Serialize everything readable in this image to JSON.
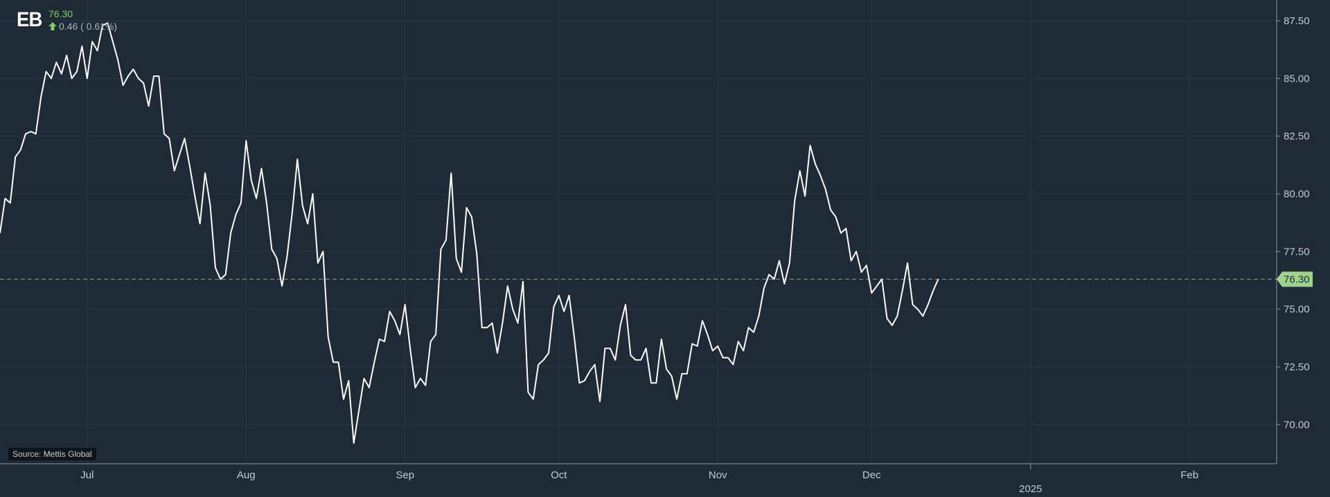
{
  "header": {
    "ticker": "EB",
    "price": "76.30",
    "change": "0.46 ( 0.61%)",
    "arrow_icon": "arrow-up-icon"
  },
  "source": "Source: Mettis Global",
  "last_value_label": "76.30",
  "colors": {
    "background": "#1e2a35",
    "line": "#ffffff",
    "grid": "#2b3844",
    "up": "#7dd35a",
    "last_badge": "#9ed489",
    "axis_text": "#c5ccd3"
  },
  "chart_data": {
    "type": "line",
    "title": "",
    "xlabel": "",
    "ylabel": "",
    "x_start": "2024-06-14",
    "x_end": "2025-02-18",
    "x_ticks": [
      {
        "label": "Jul",
        "date": "2024-07-01"
      },
      {
        "label": "Aug",
        "date": "2024-08-01"
      },
      {
        "label": "Sep",
        "date": "2024-09-01"
      },
      {
        "label": "Oct",
        "date": "2024-10-01"
      },
      {
        "label": "Nov",
        "date": "2024-11-01"
      },
      {
        "label": "Dec",
        "date": "2024-12-01"
      },
      {
        "label": "Feb",
        "date": "2025-02-01"
      }
    ],
    "x_year_marker": {
      "label": "2025",
      "date": "2025-01-01"
    },
    "ylim": [
      68.3,
      88.4
    ],
    "y_ticks": [
      70.0,
      72.5,
      75.0,
      77.5,
      80.0,
      82.5,
      85.0,
      87.5
    ],
    "y_tick_labels": [
      "70.00",
      "72.50",
      "75.00",
      "77.50",
      "80.00",
      "82.50",
      "85.00",
      "87.50"
    ],
    "last_value": 76.3,
    "grid": true,
    "legend": "none",
    "series": [
      {
        "values": [
          [
            "2024-06-14",
            78.3
          ],
          [
            "2024-06-15",
            79.8
          ],
          [
            "2024-06-16",
            79.6
          ],
          [
            "2024-06-17",
            81.6
          ],
          [
            "2024-06-18",
            81.9
          ],
          [
            "2024-06-19",
            82.6
          ],
          [
            "2024-06-20",
            82.7
          ],
          [
            "2024-06-21",
            82.6
          ],
          [
            "2024-06-22",
            84.2
          ],
          [
            "2024-06-23",
            85.3
          ],
          [
            "2024-06-24",
            85.0
          ],
          [
            "2024-06-25",
            85.7
          ],
          [
            "2024-06-26",
            85.2
          ],
          [
            "2024-06-27",
            86.0
          ],
          [
            "2024-06-28",
            85.0
          ],
          [
            "2024-06-29",
            85.3
          ],
          [
            "2024-06-30",
            86.4
          ],
          [
            "2024-07-01",
            85.0
          ],
          [
            "2024-07-02",
            86.6
          ],
          [
            "2024-07-03",
            86.2
          ],
          [
            "2024-07-04",
            87.3
          ],
          [
            "2024-07-05",
            87.4
          ],
          [
            "2024-07-06",
            86.6
          ],
          [
            "2024-07-07",
            85.8
          ],
          [
            "2024-07-08",
            84.7
          ],
          [
            "2024-07-09",
            85.1
          ],
          [
            "2024-07-10",
            85.4
          ],
          [
            "2024-07-11",
            85.0
          ],
          [
            "2024-07-12",
            84.8
          ],
          [
            "2024-07-13",
            83.8
          ],
          [
            "2024-07-14",
            85.1
          ],
          [
            "2024-07-15",
            85.1
          ],
          [
            "2024-07-16",
            82.6
          ],
          [
            "2024-07-17",
            82.4
          ],
          [
            "2024-07-18",
            81.0
          ],
          [
            "2024-07-19",
            81.7
          ],
          [
            "2024-07-20",
            82.4
          ],
          [
            "2024-07-21",
            81.2
          ],
          [
            "2024-07-22",
            79.9
          ],
          [
            "2024-07-23",
            78.7
          ],
          [
            "2024-07-24",
            80.9
          ],
          [
            "2024-07-25",
            79.5
          ],
          [
            "2024-07-26",
            76.8
          ],
          [
            "2024-07-27",
            76.3
          ],
          [
            "2024-07-28",
            76.5
          ],
          [
            "2024-07-29",
            78.3
          ],
          [
            "2024-07-30",
            79.1
          ],
          [
            "2024-07-31",
            79.6
          ],
          [
            "2024-08-01",
            82.3
          ],
          [
            "2024-08-02",
            80.6
          ],
          [
            "2024-08-03",
            79.8
          ],
          [
            "2024-08-04",
            81.1
          ],
          [
            "2024-08-05",
            79.6
          ],
          [
            "2024-08-06",
            77.6
          ],
          [
            "2024-08-07",
            77.2
          ],
          [
            "2024-08-08",
            76.0
          ],
          [
            "2024-08-09",
            77.3
          ],
          [
            "2024-08-10",
            79.2
          ],
          [
            "2024-08-11",
            81.5
          ],
          [
            "2024-08-12",
            79.5
          ],
          [
            "2024-08-13",
            78.7
          ],
          [
            "2024-08-14",
            80.0
          ],
          [
            "2024-08-15",
            77.0
          ],
          [
            "2024-08-16",
            77.5
          ],
          [
            "2024-08-17",
            73.8
          ],
          [
            "2024-08-18",
            72.7
          ],
          [
            "2024-08-19",
            72.7
          ],
          [
            "2024-08-20",
            71.1
          ],
          [
            "2024-08-21",
            71.9
          ],
          [
            "2024-08-22",
            69.2
          ],
          [
            "2024-08-23",
            70.6
          ],
          [
            "2024-08-24",
            72.0
          ],
          [
            "2024-08-25",
            71.6
          ],
          [
            "2024-08-26",
            72.7
          ],
          [
            "2024-08-27",
            73.7
          ],
          [
            "2024-08-28",
            73.6
          ],
          [
            "2024-08-29",
            74.9
          ],
          [
            "2024-08-30",
            74.5
          ],
          [
            "2024-08-31",
            73.9
          ],
          [
            "2024-09-01",
            75.2
          ],
          [
            "2024-09-02",
            73.3
          ],
          [
            "2024-09-03",
            71.6
          ],
          [
            "2024-09-04",
            72.0
          ],
          [
            "2024-09-05",
            71.7
          ],
          [
            "2024-09-06",
            73.6
          ],
          [
            "2024-09-07",
            73.9
          ],
          [
            "2024-09-08",
            77.6
          ],
          [
            "2024-09-09",
            78.0
          ],
          [
            "2024-09-10",
            80.9
          ],
          [
            "2024-09-11",
            77.2
          ],
          [
            "2024-09-12",
            76.6
          ],
          [
            "2024-09-13",
            79.4
          ],
          [
            "2024-09-14",
            79.0
          ],
          [
            "2024-09-15",
            77.4
          ],
          [
            "2024-09-16",
            74.2
          ],
          [
            "2024-09-17",
            74.2
          ],
          [
            "2024-09-18",
            74.4
          ],
          [
            "2024-09-19",
            73.1
          ],
          [
            "2024-09-20",
            74.4
          ],
          [
            "2024-09-21",
            76.0
          ],
          [
            "2024-09-22",
            75.0
          ],
          [
            "2024-09-23",
            74.4
          ],
          [
            "2024-09-24",
            76.2
          ],
          [
            "2024-09-25",
            71.4
          ],
          [
            "2024-09-26",
            71.1
          ],
          [
            "2024-09-27",
            72.6
          ],
          [
            "2024-09-28",
            72.8
          ],
          [
            "2024-09-29",
            73.1
          ],
          [
            "2024-09-30",
            75.1
          ],
          [
            "2024-10-01",
            75.6
          ],
          [
            "2024-10-02",
            74.9
          ],
          [
            "2024-10-03",
            75.6
          ],
          [
            "2024-10-04",
            73.8
          ],
          [
            "2024-10-05",
            71.8
          ],
          [
            "2024-10-06",
            71.9
          ],
          [
            "2024-10-07",
            72.3
          ],
          [
            "2024-10-08",
            72.6
          ],
          [
            "2024-10-09",
            71.0
          ],
          [
            "2024-10-10",
            73.3
          ],
          [
            "2024-10-11",
            73.3
          ],
          [
            "2024-10-12",
            72.8
          ],
          [
            "2024-10-13",
            74.3
          ],
          [
            "2024-10-14",
            75.2
          ],
          [
            "2024-10-15",
            73.0
          ],
          [
            "2024-10-16",
            72.8
          ],
          [
            "2024-10-17",
            72.8
          ],
          [
            "2024-10-18",
            73.3
          ],
          [
            "2024-10-19",
            71.8
          ],
          [
            "2024-10-20",
            71.8
          ],
          [
            "2024-10-21",
            73.7
          ],
          [
            "2024-10-22",
            72.4
          ],
          [
            "2024-10-23",
            72.1
          ],
          [
            "2024-10-24",
            71.1
          ],
          [
            "2024-10-25",
            72.2
          ],
          [
            "2024-10-26",
            72.2
          ],
          [
            "2024-10-27",
            73.5
          ],
          [
            "2024-10-28",
            73.4
          ],
          [
            "2024-10-29",
            74.5
          ],
          [
            "2024-10-30",
            73.9
          ],
          [
            "2024-10-31",
            73.2
          ],
          [
            "2024-11-01",
            73.4
          ],
          [
            "2024-11-02",
            72.9
          ],
          [
            "2024-11-03",
            72.9
          ],
          [
            "2024-11-04",
            72.6
          ],
          [
            "2024-11-05",
            73.6
          ],
          [
            "2024-11-06",
            73.2
          ],
          [
            "2024-11-07",
            74.2
          ],
          [
            "2024-11-08",
            74.0
          ],
          [
            "2024-11-09",
            74.7
          ],
          [
            "2024-11-10",
            75.9
          ],
          [
            "2024-11-11",
            76.5
          ],
          [
            "2024-11-12",
            76.3
          ],
          [
            "2024-11-13",
            77.1
          ],
          [
            "2024-11-14",
            76.1
          ],
          [
            "2024-11-15",
            77.0
          ],
          [
            "2024-11-16",
            79.7
          ],
          [
            "2024-11-17",
            81.0
          ],
          [
            "2024-11-18",
            79.9
          ],
          [
            "2024-11-19",
            82.1
          ],
          [
            "2024-11-20",
            81.3
          ],
          [
            "2024-11-21",
            80.8
          ],
          [
            "2024-11-22",
            80.2
          ],
          [
            "2024-11-23",
            79.3
          ],
          [
            "2024-11-24",
            79.0
          ],
          [
            "2024-11-25",
            78.3
          ],
          [
            "2024-11-26",
            78.5
          ],
          [
            "2024-11-27",
            77.1
          ],
          [
            "2024-11-28",
            77.5
          ],
          [
            "2024-11-29",
            76.6
          ],
          [
            "2024-11-30",
            76.9
          ],
          [
            "2024-12-01",
            75.7
          ],
          [
            "2024-12-02",
            76.0
          ],
          [
            "2024-12-03",
            76.3
          ],
          [
            "2024-12-04",
            74.6
          ],
          [
            "2024-12-05",
            74.3
          ],
          [
            "2024-12-06",
            74.7
          ],
          [
            "2024-12-07",
            75.8
          ],
          [
            "2024-12-08",
            77.0
          ],
          [
            "2024-12-09",
            75.2
          ],
          [
            "2024-12-10",
            75.0
          ],
          [
            "2024-12-11",
            74.7
          ],
          [
            "2024-12-12",
            75.2
          ],
          [
            "2024-12-13",
            75.8
          ],
          [
            "2024-12-14",
            76.3
          ]
        ]
      }
    ]
  }
}
